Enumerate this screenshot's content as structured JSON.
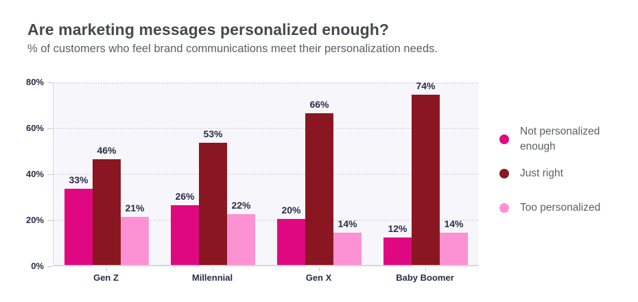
{
  "header": {
    "title": "Are marketing messages personalized enough?",
    "subtitle": "% of customers who feel brand communications meet their personalization needs."
  },
  "chart_data": {
    "type": "bar",
    "title": "Are marketing messages personalized enough?",
    "subtitle": "% of customers who feel brand communications meet their personalization needs.",
    "categories": [
      "Gen Z",
      "Millennial",
      "Gen X",
      "Baby Boomer"
    ],
    "series": [
      {
        "name": "Not personalized enough",
        "color": "#E00880",
        "values": [
          33,
          26,
          20,
          12
        ],
        "labels": [
          "33%",
          "26%",
          "20%",
          "12%"
        ]
      },
      {
        "name": "Just right",
        "color": "#8A1621",
        "values": [
          46,
          53,
          66,
          74
        ],
        "labels": [
          "46%",
          "53%",
          "66%",
          "74%"
        ]
      },
      {
        "name": "Too personalized",
        "color": "#FC92D3",
        "values": [
          21,
          22,
          14,
          14
        ],
        "labels": [
          "21%",
          "22%",
          "14%",
          "14%"
        ]
      }
    ],
    "xlabel": "",
    "ylabel": "",
    "ylim": [
      0,
      80
    ],
    "ytick_step": 20,
    "yticks": [
      "0%",
      "20%",
      "40%",
      "60%",
      "80%"
    ],
    "grid": "horizontal-dotted",
    "legend_position": "right",
    "plot_background": "#F7F6FB",
    "gridline_color": "#DFDDE8",
    "axis_line_color": "#D8D6E0",
    "tick_color": "#C9C7D4",
    "label_color": "#2B2B4A",
    "title_color": "#45484E",
    "subtitle_color": "#5A5D62",
    "legend_text_color": "#5C5F64"
  }
}
